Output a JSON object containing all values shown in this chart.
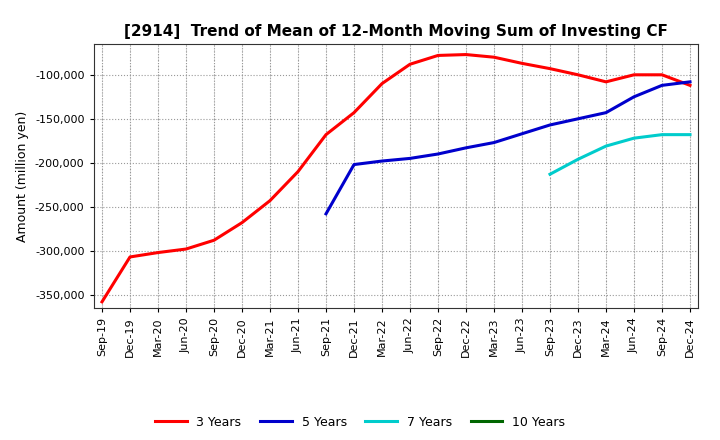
{
  "title": "[2914]  Trend of Mean of 12-Month Moving Sum of Investing CF",
  "ylabel": "Amount (million yen)",
  "ylim": [
    -365000,
    -65000
  ],
  "yticks": [
    -350000,
    -300000,
    -250000,
    -200000,
    -150000,
    -100000
  ],
  "background_color": "#ffffff",
  "plot_bg_color": "#ffffff",
  "grid_color": "#999999",
  "series": {
    "3 Years": {
      "color": "#ff0000",
      "x": [
        "Sep-19",
        "Dec-19",
        "Mar-20",
        "Jun-20",
        "Sep-20",
        "Dec-20",
        "Mar-21",
        "Jun-21",
        "Sep-21",
        "Dec-21",
        "Mar-22",
        "Jun-22",
        "Sep-22",
        "Dec-22",
        "Mar-23",
        "Jun-23",
        "Sep-23",
        "Dec-23",
        "Mar-24",
        "Jun-24",
        "Sep-24",
        "Dec-24"
      ],
      "y": [
        -358000,
        -307000,
        -302000,
        -298000,
        -288000,
        -268000,
        -243000,
        -210000,
        -168000,
        -143000,
        -110000,
        -88000,
        -78000,
        -77000,
        -80000,
        -87000,
        -93000,
        -100000,
        -108000,
        -100000,
        -100000,
        -112000
      ]
    },
    "5 Years": {
      "color": "#0000cc",
      "x": [
        "Sep-21",
        "Dec-21",
        "Mar-22",
        "Jun-22",
        "Sep-22",
        "Dec-22",
        "Mar-23",
        "Jun-23",
        "Sep-23",
        "Dec-23",
        "Mar-24",
        "Jun-24",
        "Sep-24",
        "Dec-24"
      ],
      "y": [
        -258000,
        -202000,
        -198000,
        -195000,
        -190000,
        -183000,
        -177000,
        -167000,
        -157000,
        -150000,
        -143000,
        -125000,
        -112000,
        -108000
      ]
    },
    "7 Years": {
      "color": "#00cccc",
      "x": [
        "Sep-23",
        "Dec-23",
        "Mar-24",
        "Jun-24",
        "Sep-24",
        "Dec-24"
      ],
      "y": [
        -213000,
        -196000,
        -181000,
        -172000,
        -168000,
        -168000
      ]
    },
    "10 Years": {
      "color": "#006600",
      "x": [],
      "y": []
    }
  },
  "xtick_labels": [
    "Sep-19",
    "Dec-19",
    "Mar-20",
    "Jun-20",
    "Sep-20",
    "Dec-20",
    "Mar-21",
    "Jun-21",
    "Sep-21",
    "Dec-21",
    "Mar-22",
    "Jun-22",
    "Sep-22",
    "Dec-22",
    "Mar-23",
    "Jun-23",
    "Sep-23",
    "Dec-23",
    "Mar-24",
    "Jun-24",
    "Sep-24",
    "Dec-24"
  ]
}
